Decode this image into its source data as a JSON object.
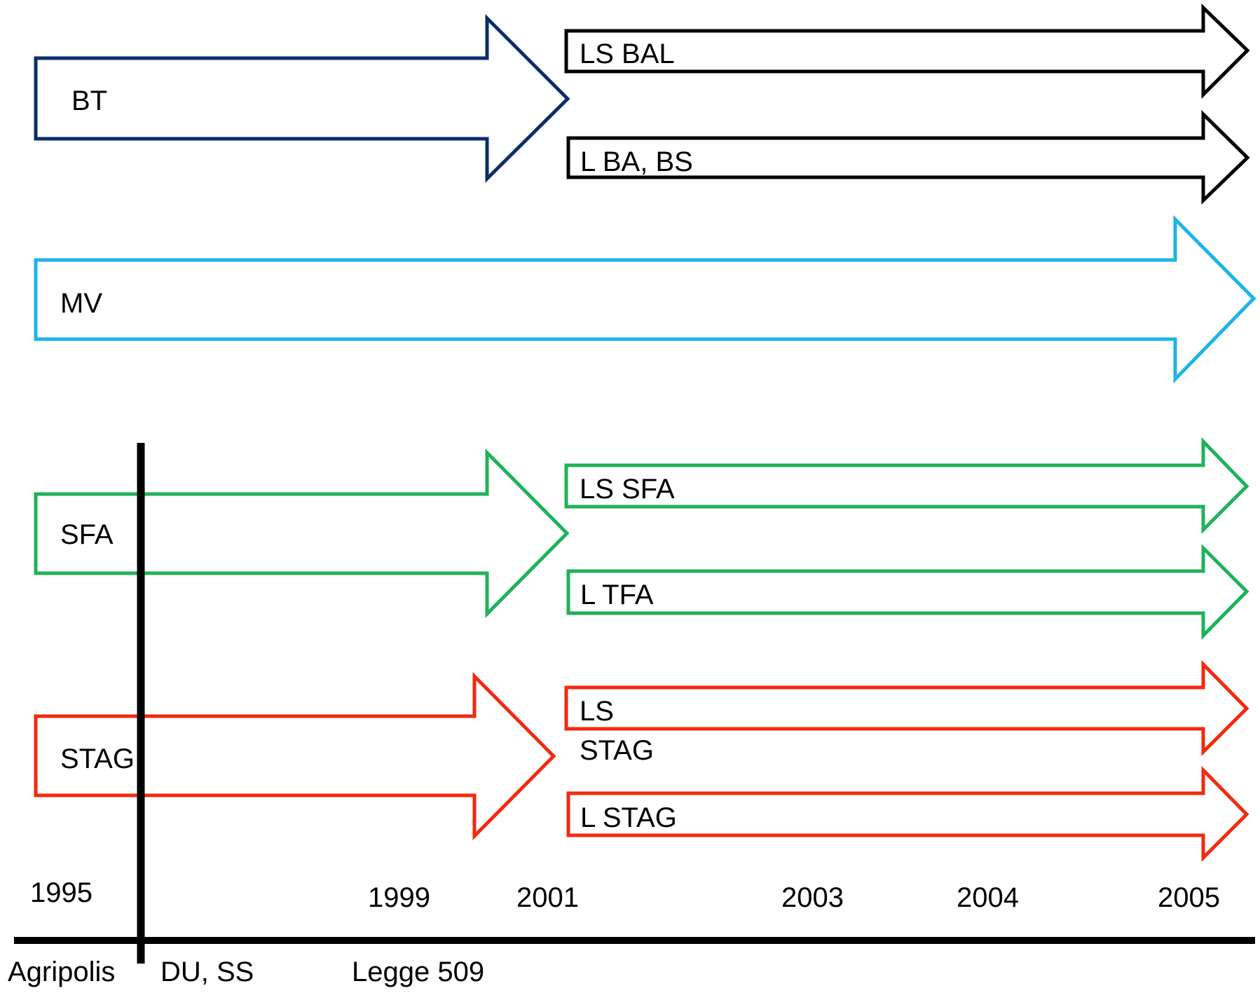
{
  "colors": {
    "bt": "#0b2e6b",
    "black": "#000000",
    "mv": "#1cb5e6",
    "sfa": "#1fb25a",
    "stag": "#f22a10"
  },
  "arrows": {
    "bt": "BT",
    "ls_bal": "LS BAL",
    "l_ba_bs": "L BA, BS",
    "mv": "MV",
    "sfa": "SFA",
    "ls_sfa": "LS SFA",
    "l_tfa": "L TFA",
    "stag": "STAG",
    "ls_stag_1": "LS",
    "ls_stag_2": "STAG",
    "l_stag": "L STAG"
  },
  "years": {
    "y1995": "1995",
    "y1999": "1999",
    "y2001": "2001",
    "y2003": "2003",
    "y2004": "2004",
    "y2005": "2005"
  },
  "events": {
    "agripolis": "Agripolis",
    "du_ss": "DU, SS",
    "legge": "Legge 509"
  }
}
